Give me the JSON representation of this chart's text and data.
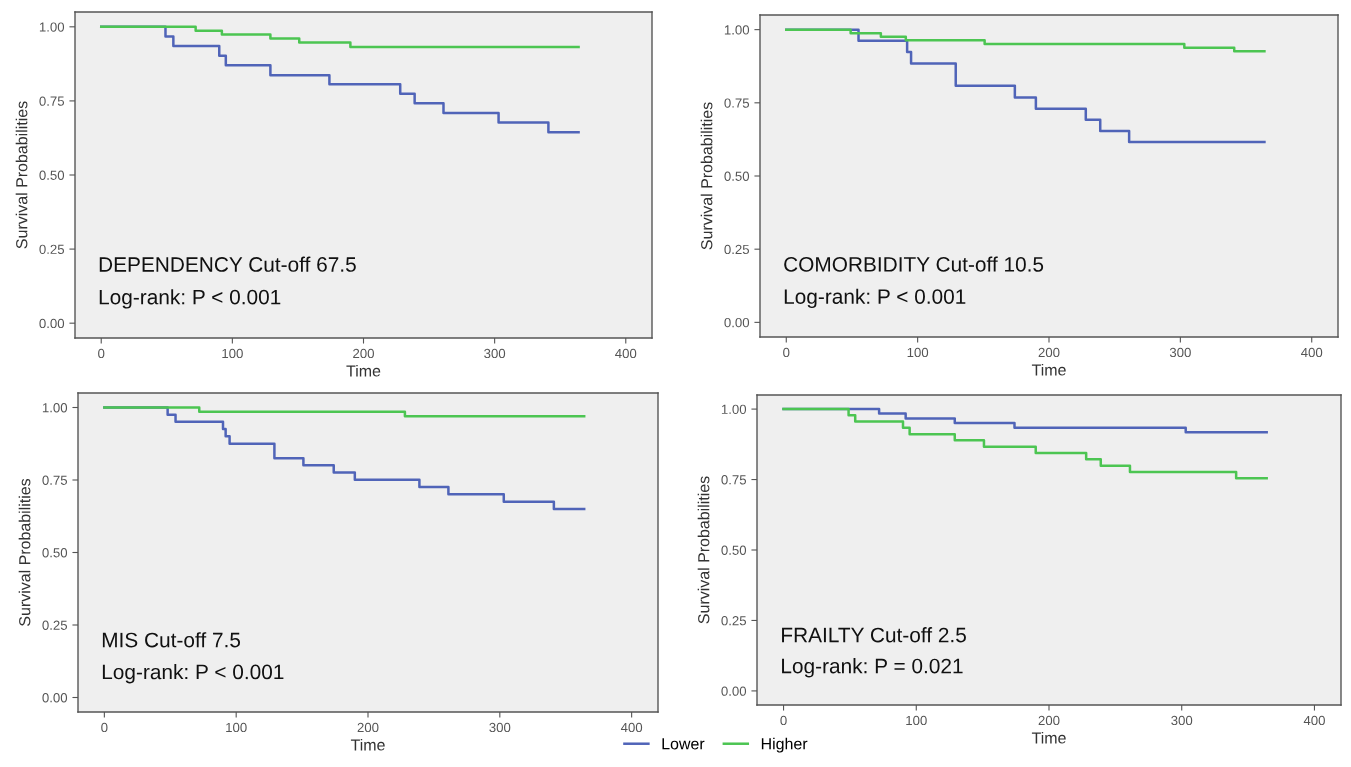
{
  "chart_data": [
    {
      "type": "step",
      "xlabel": "Time",
      "ylabel": "Survival Probabilities",
      "xlim": [
        -20,
        420
      ],
      "ylim": [
        -0.05,
        1.05
      ],
      "xticks": [
        0,
        100,
        200,
        300,
        400
      ],
      "yticks": [
        {
          "value": 0,
          "label": "0.00"
        },
        {
          "value": 0.25,
          "label": "0.25"
        },
        {
          "value": 0.5,
          "label": "0.50"
        },
        {
          "value": 0.75,
          "label": "0.75"
        },
        {
          "value": 1,
          "label": "1.00"
        }
      ],
      "grid": false,
      "legend": "bottom",
      "annotations": [
        "DEPENDENCY Cut-off 67.5",
        "Log-rank: P < 0.001"
      ],
      "series": [
        {
          "name": "Lower",
          "color": "#5064b8",
          "x": [
            0,
            49,
            55,
            90,
            95,
            129,
            174,
            228,
            239,
            261,
            303,
            341,
            364
          ],
          "values": [
            1.0,
            0.967,
            0.935,
            0.902,
            0.87,
            0.837,
            0.806,
            0.774,
            0.742,
            0.709,
            0.677,
            0.644,
            0.644
          ]
        },
        {
          "name": "Higher",
          "color": "#4cc552",
          "x": [
            0,
            72,
            92,
            129,
            151,
            190,
            364
          ],
          "values": [
            1.0,
            0.987,
            0.974,
            0.961,
            0.947,
            0.932,
            0.932
          ]
        }
      ]
    },
    {
      "type": "step",
      "xlabel": "Time",
      "ylabel": "Survival Probabilities",
      "xlim": [
        -20,
        420
      ],
      "ylim": [
        -0.05,
        1.05
      ],
      "xticks": [
        0,
        100,
        200,
        300,
        400
      ],
      "yticks": [
        {
          "value": 0,
          "label": "0.00"
        },
        {
          "value": 0.25,
          "label": "0.25"
        },
        {
          "value": 0.5,
          "label": "0.50"
        },
        {
          "value": 0.75,
          "label": "0.75"
        },
        {
          "value": 1,
          "label": "1.00"
        }
      ],
      "grid": false,
      "annotations": [
        "COMORBIDITY Cut-off 10.5",
        "Log-rank: P < 0.001"
      ],
      "series": [
        {
          "color": "#5064b8",
          "x": [
            0,
            55,
            92,
            95,
            129,
            174,
            190,
            228,
            239,
            261,
            364
          ],
          "values": [
            1.0,
            0.962,
            0.924,
            0.884,
            0.808,
            0.768,
            0.73,
            0.692,
            0.654,
            0.616,
            0.616
          ]
        },
        {
          "color": "#4cc552",
          "x": [
            0,
            49,
            72,
            91,
            151,
            303,
            341,
            364
          ],
          "values": [
            1.0,
            0.988,
            0.976,
            0.964,
            0.951,
            0.938,
            0.926,
            0.926
          ]
        }
      ]
    },
    {
      "type": "step",
      "xlabel": "Time",
      "ylabel": "Survival Probabilities",
      "xlim": [
        -20,
        420
      ],
      "ylim": [
        -0.05,
        1.05
      ],
      "xticks": [
        0,
        100,
        200,
        300,
        400
      ],
      "yticks": [
        {
          "value": 0,
          "label": "0.00"
        },
        {
          "value": 0.25,
          "label": "0.25"
        },
        {
          "value": 0.5,
          "label": "0.50"
        },
        {
          "value": 0.75,
          "label": "0.75"
        },
        {
          "value": 1,
          "label": "1.00"
        }
      ],
      "grid": false,
      "annotations": [
        "MIS Cut-off 7.5",
        "Log-rank: P < 0.001"
      ],
      "series": [
        {
          "color": "#5064b8",
          "x": [
            0,
            48,
            54,
            90,
            92,
            95,
            129,
            151,
            174,
            190,
            239,
            261,
            303,
            341,
            364
          ],
          "values": [
            1.0,
            0.975,
            0.951,
            0.926,
            0.901,
            0.875,
            0.825,
            0.801,
            0.776,
            0.751,
            0.726,
            0.701,
            0.675,
            0.65,
            0.65
          ]
        },
        {
          "color": "#4cc552",
          "x": [
            0,
            72,
            228,
            364
          ],
          "values": [
            1.0,
            0.985,
            0.97,
            0.97
          ]
        }
      ]
    },
    {
      "type": "step",
      "xlabel": "Time",
      "ylabel": "Survival Probabilities",
      "xlim": [
        -20,
        420
      ],
      "ylim": [
        -0.05,
        1.05
      ],
      "xticks": [
        0,
        100,
        200,
        300,
        400
      ],
      "yticks": [
        {
          "value": 0,
          "label": "0.00"
        },
        {
          "value": 0.25,
          "label": "0.25"
        },
        {
          "value": 0.5,
          "label": "0.50"
        },
        {
          "value": 0.75,
          "label": "0.75"
        },
        {
          "value": 1,
          "label": "1.00"
        }
      ],
      "grid": false,
      "annotations": [
        "FRAILTY Cut-off 2.5",
        "Log-rank: P = 0.021"
      ],
      "series": [
        {
          "color": "#5064b8",
          "x": [
            0,
            72,
            92,
            129,
            174,
            303,
            364
          ],
          "values": [
            1.0,
            0.984,
            0.967,
            0.951,
            0.934,
            0.918,
            0.918
          ]
        },
        {
          "color": "#4cc552",
          "x": [
            0,
            49,
            54,
            90,
            95,
            129,
            151,
            190,
            228,
            239,
            261,
            341,
            364
          ],
          "values": [
            1.0,
            0.978,
            0.956,
            0.934,
            0.911,
            0.889,
            0.866,
            0.844,
            0.822,
            0.799,
            0.777,
            0.755,
            0.755
          ]
        }
      ]
    }
  ]
}
